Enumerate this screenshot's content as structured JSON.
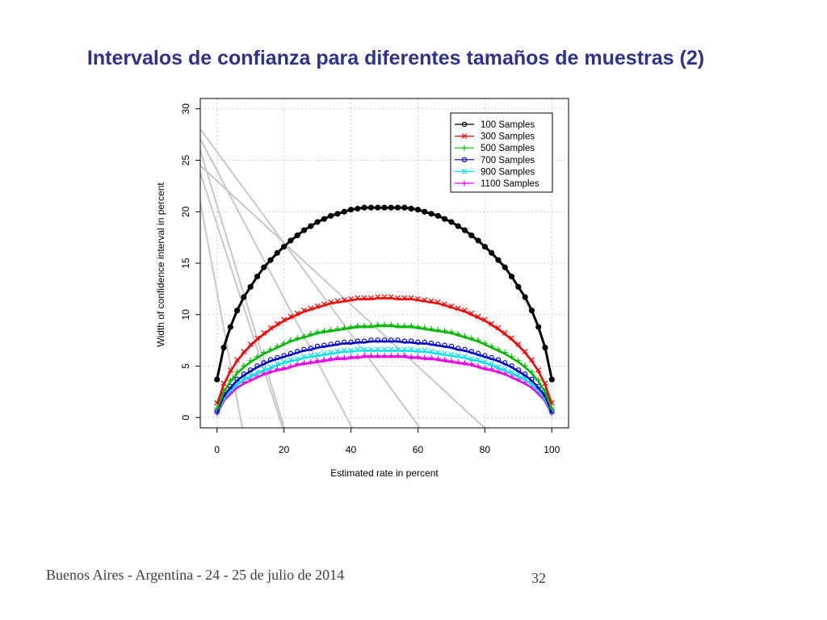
{
  "slide": {
    "title": "Intervalos de confianza para diferentes tamaños de muestras (2)",
    "footer_text": "Buenos Aires - Argentina - 24 - 25 de julio de 2014",
    "page_number": "32",
    "title_color": "#2e3192"
  },
  "chart_data": {
    "type": "line",
    "title": "",
    "xlabel": "Estimated rate in percent",
    "ylabel": "Width of confidence interval in percent",
    "xlim": [
      -5,
      105
    ],
    "ylim": [
      -1,
      31
    ],
    "xticks": [
      0,
      20,
      40,
      60,
      80,
      100
    ],
    "yticks": [
      0,
      5,
      10,
      15,
      20,
      25,
      30
    ],
    "grid": true,
    "legend_position": "top-right",
    "x": [
      0,
      2,
      4,
      6,
      8,
      10,
      12,
      14,
      16,
      18,
      20,
      22,
      24,
      26,
      28,
      30,
      32,
      34,
      36,
      38,
      40,
      42,
      44,
      46,
      48,
      50,
      52,
      54,
      56,
      58,
      60,
      62,
      64,
      66,
      68,
      70,
      72,
      74,
      76,
      78,
      80,
      82,
      84,
      86,
      88,
      90,
      92,
      94,
      96,
      98,
      100
    ],
    "series": [
      {
        "name": "100 Samples",
        "color": "#000000",
        "marker": "o",
        "values": [
          3.7,
          6.8,
          8.8,
          10.4,
          11.7,
          12.7,
          13.7,
          14.6,
          15.3,
          16.0,
          16.6,
          17.2,
          17.7,
          18.2,
          18.6,
          19.0,
          19.3,
          19.6,
          19.8,
          20.0,
          20.2,
          20.3,
          20.4,
          20.4,
          20.4,
          20.4,
          20.4,
          20.4,
          20.4,
          20.3,
          20.2,
          20.0,
          19.8,
          19.6,
          19.3,
          19.0,
          18.6,
          18.2,
          17.7,
          17.2,
          16.6,
          16.0,
          15.3,
          14.6,
          13.7,
          12.7,
          11.7,
          10.4,
          8.8,
          6.8,
          3.7
        ]
      },
      {
        "name": "300 Samples",
        "color": "#ff0000",
        "marker": "x",
        "values": [
          1.3,
          3.2,
          4.5,
          5.5,
          6.3,
          7.0,
          7.6,
          8.1,
          8.6,
          9.0,
          9.4,
          9.7,
          10.0,
          10.3,
          10.5,
          10.7,
          10.9,
          11.1,
          11.2,
          11.3,
          11.4,
          11.5,
          11.5,
          11.5,
          11.6,
          11.6,
          11.6,
          11.5,
          11.5,
          11.5,
          11.4,
          11.3,
          11.2,
          11.1,
          10.9,
          10.7,
          10.5,
          10.3,
          10.0,
          9.7,
          9.4,
          9.0,
          8.6,
          8.1,
          7.6,
          7.0,
          6.3,
          5.5,
          4.5,
          3.2,
          1.3
        ]
      },
      {
        "name": "500 Samples",
        "color": "#00bb00",
        "marker": "+",
        "values": [
          0.8,
          2.5,
          3.5,
          4.3,
          4.9,
          5.4,
          5.8,
          6.2,
          6.5,
          6.8,
          7.1,
          7.4,
          7.6,
          7.8,
          8.0,
          8.2,
          8.3,
          8.4,
          8.5,
          8.6,
          8.7,
          8.8,
          8.8,
          8.8,
          8.9,
          8.9,
          8.9,
          8.8,
          8.8,
          8.8,
          8.7,
          8.6,
          8.5,
          8.4,
          8.3,
          8.2,
          8.0,
          7.8,
          7.6,
          7.4,
          7.1,
          6.8,
          6.5,
          6.2,
          5.8,
          5.4,
          4.9,
          4.3,
          3.5,
          2.5,
          0.8
        ]
      },
      {
        "name": "700 Samples",
        "color": "#0000cc",
        "marker": "o",
        "values": [
          0.5,
          2.1,
          2.9,
          3.6,
          4.1,
          4.5,
          4.9,
          5.2,
          5.5,
          5.7,
          5.9,
          6.1,
          6.3,
          6.5,
          6.6,
          6.8,
          6.9,
          7.0,
          7.1,
          7.2,
          7.2,
          7.3,
          7.3,
          7.4,
          7.4,
          7.4,
          7.4,
          7.4,
          7.3,
          7.3,
          7.2,
          7.2,
          7.1,
          7.0,
          6.9,
          6.8,
          6.6,
          6.5,
          6.3,
          6.1,
          5.9,
          5.7,
          5.5,
          5.2,
          4.9,
          4.5,
          4.1,
          3.6,
          2.9,
          2.1,
          0.5
        ]
      },
      {
        "name": "900 Samples",
        "color": "#00e5ee",
        "marker": "x",
        "values": [
          0.4,
          1.8,
          2.6,
          3.2,
          3.7,
          4.0,
          4.3,
          4.6,
          4.8,
          5.1,
          5.3,
          5.5,
          5.6,
          5.8,
          5.9,
          6.0,
          6.1,
          6.2,
          6.3,
          6.4,
          6.4,
          6.5,
          6.5,
          6.5,
          6.5,
          6.5,
          6.5,
          6.5,
          6.5,
          6.5,
          6.4,
          6.4,
          6.3,
          6.2,
          6.1,
          6.0,
          5.9,
          5.8,
          5.6,
          5.5,
          5.3,
          5.1,
          4.8,
          4.6,
          4.3,
          4.0,
          3.7,
          3.2,
          2.6,
          1.8,
          0.4
        ]
      },
      {
        "name": "1100 Samples",
        "color": "#ee00ee",
        "marker": "+",
        "values": [
          0.3,
          1.6,
          2.3,
          2.9,
          3.3,
          3.6,
          3.9,
          4.2,
          4.4,
          4.6,
          4.7,
          4.9,
          5.1,
          5.2,
          5.3,
          5.4,
          5.5,
          5.6,
          5.7,
          5.7,
          5.8,
          5.8,
          5.9,
          5.9,
          5.9,
          5.9,
          5.9,
          5.9,
          5.9,
          5.8,
          5.8,
          5.7,
          5.7,
          5.6,
          5.5,
          5.4,
          5.3,
          5.2,
          5.1,
          4.9,
          4.7,
          4.6,
          4.4,
          4.2,
          3.9,
          3.6,
          3.3,
          2.9,
          2.3,
          1.6,
          0.3
        ]
      }
    ]
  }
}
